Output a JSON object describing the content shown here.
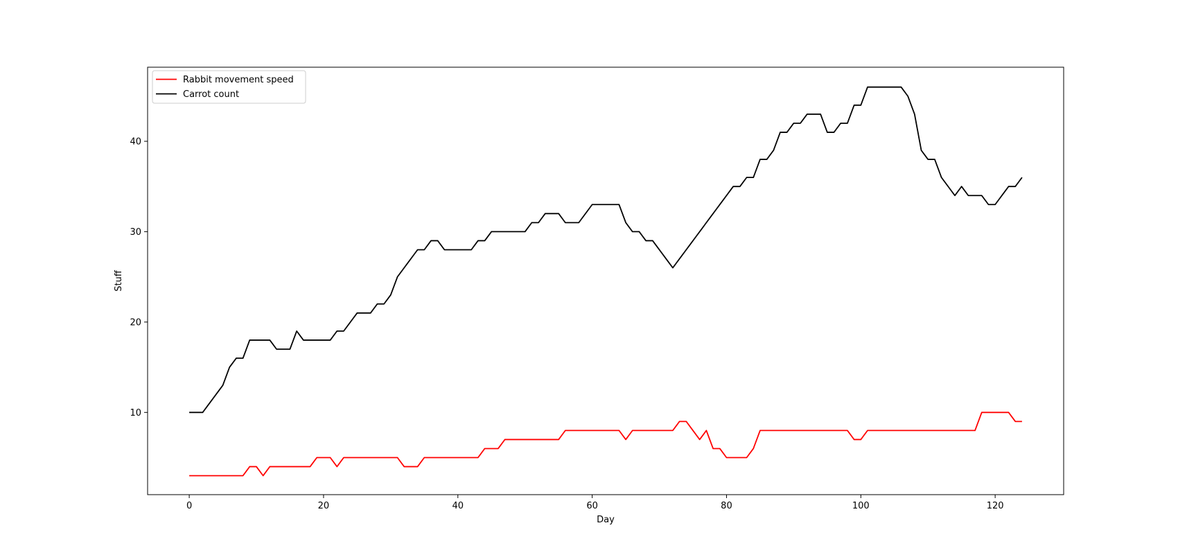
{
  "chart_data": {
    "type": "line",
    "title": "",
    "xlabel": "Day",
    "ylabel": "Stuff",
    "xlim": [
      -6.2,
      130.2
    ],
    "ylim": [
      0.9,
      48.2
    ],
    "xticks": [
      0,
      20,
      40,
      60,
      80,
      100,
      120
    ],
    "yticks": [
      10,
      20,
      30,
      40
    ],
    "grid": false,
    "legend_position": "top-left",
    "series": [
      {
        "name": "Rabbit movement speed",
        "color": "#ff0000",
        "x": [
          0,
          8,
          9,
          10,
          11,
          12,
          18,
          19,
          21,
          22,
          23,
          31,
          32,
          34,
          35,
          43,
          44,
          46,
          47,
          55,
          56,
          64,
          65,
          66,
          72,
          73,
          74,
          76,
          77,
          78,
          79,
          80,
          83,
          84,
          85,
          98,
          99,
          100,
          101,
          117,
          118,
          122,
          123,
          124
        ],
        "y": [
          3,
          3,
          4,
          4,
          3,
          4,
          4,
          5,
          5,
          4,
          5,
          5,
          4,
          4,
          5,
          5,
          6,
          6,
          7,
          7,
          8,
          8,
          7,
          8,
          8,
          9,
          9,
          7,
          8,
          6,
          6,
          5,
          5,
          6,
          8,
          8,
          7,
          7,
          8,
          8,
          10,
          10,
          9,
          9
        ]
      },
      {
        "name": "Carrot count",
        "color": "#000000",
        "x": [
          0,
          2,
          5,
          6,
          7,
          8,
          9,
          12,
          13,
          15,
          16,
          17,
          21,
          22,
          23,
          25,
          27,
          28,
          29,
          30,
          31,
          34,
          35,
          36,
          37,
          38,
          42,
          43,
          44,
          45,
          50,
          51,
          52,
          53,
          55,
          56,
          58,
          60,
          64,
          65,
          66,
          67,
          68,
          69,
          72,
          81,
          82,
          83,
          84,
          85,
          86,
          87,
          88,
          89,
          90,
          91,
          92,
          94,
          95,
          96,
          97,
          98,
          99,
          100,
          101,
          106,
          107,
          108,
          109,
          110,
          111,
          112,
          114,
          115,
          116,
          118,
          119,
          120,
          122,
          123,
          124
        ],
        "y": [
          10,
          10,
          13,
          15,
          16,
          16,
          18,
          18,
          17,
          17,
          19,
          18,
          18,
          19,
          19,
          21,
          21,
          22,
          22,
          23,
          25,
          28,
          28,
          29,
          29,
          28,
          28,
          29,
          29,
          30,
          30,
          31,
          31,
          32,
          32,
          31,
          31,
          33,
          33,
          31,
          30,
          30,
          29,
          29,
          26,
          35,
          35,
          36,
          36,
          38,
          38,
          39,
          41,
          41,
          42,
          42,
          43,
          43,
          41,
          41,
          42,
          42,
          44,
          44,
          46,
          46,
          45,
          43,
          39,
          38,
          38,
          36,
          34,
          35,
          34,
          34,
          33,
          33,
          35,
          35,
          36
        ]
      }
    ]
  }
}
